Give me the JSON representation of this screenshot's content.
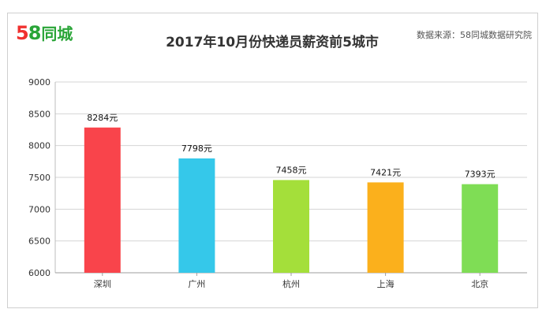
{
  "logo": {
    "number": "58",
    "text": "同城"
  },
  "source_text": "数据来源：58同城数据研究院",
  "chart_data": {
    "type": "bar",
    "title": "2017年10月份快递员薪资前5城市",
    "categories": [
      "深圳",
      "广州",
      "杭州",
      "上海",
      "北京"
    ],
    "values": [
      8284,
      7798,
      7458,
      7421,
      7393
    ],
    "data_labels": [
      "8284元",
      "7798元",
      "7458元",
      "7421元",
      "7393元"
    ],
    "colors": [
      "#f9444b",
      "#35c8ea",
      "#a4df3a",
      "#fbb01c",
      "#7fdd55"
    ],
    "ylim": [
      6000,
      9000
    ],
    "yticks": [
      6000,
      6500,
      7000,
      7500,
      8000,
      8500,
      9000
    ],
    "grid": true
  }
}
